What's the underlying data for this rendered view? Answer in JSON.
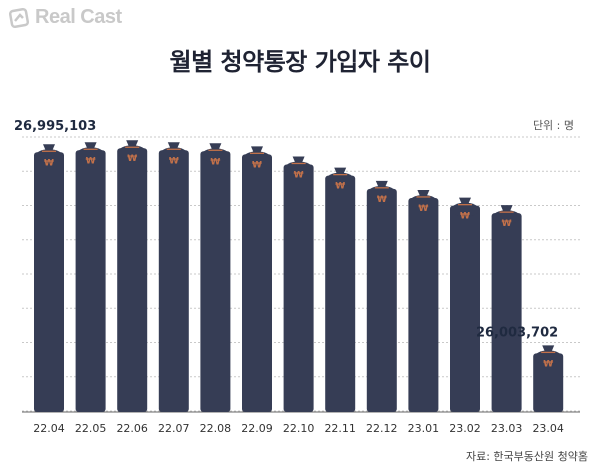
{
  "brand": {
    "name": "Real Cast"
  },
  "header": {
    "title": "월별 청약통장 가입자 추이",
    "unit": "단위 : 명",
    "source": "자료: 한국부동산원 청약홈"
  },
  "colors": {
    "bar": "#363d55",
    "accent": "#c2714a",
    "grid": "#c9c9c9"
  },
  "chart_data": {
    "type": "bar",
    "title": "월별 청약통장 가입자 추이",
    "xlabel": "",
    "ylabel": "",
    "unit": "명",
    "categories": [
      "22.04",
      "22.05",
      "22.06",
      "22.07",
      "22.08",
      "22.09",
      "22.10",
      "22.11",
      "22.12",
      "23.01",
      "23.02",
      "23.03",
      "23.04"
    ],
    "values": [
      26995103,
      27005000,
      27015000,
      27005000,
      27000000,
      26985000,
      26935000,
      26880000,
      26815000,
      26770000,
      26732000,
      26695000,
      26003702
    ],
    "ylim": [
      25700000,
      27100000
    ],
    "grid": true,
    "labels": [
      {
        "index": 0,
        "text": "26,995,103"
      },
      {
        "index": 12,
        "text": "26,003,702"
      }
    ]
  }
}
